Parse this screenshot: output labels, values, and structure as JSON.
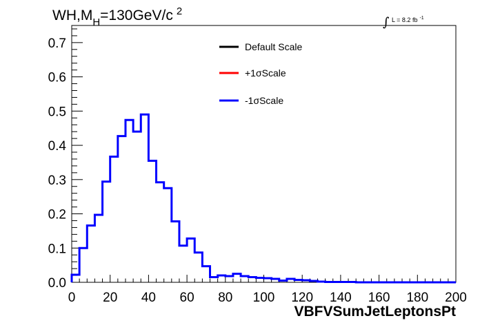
{
  "chart_data": {
    "type": "histogram",
    "title": {
      "main": "WH,M",
      "sub": "H",
      "rest": "=130GeV/c",
      "sup": "2"
    },
    "luminosity": {
      "integral": "∫",
      "text": "L = 8.2 fb",
      "sup": "-1"
    },
    "xlabel": "VBFVSumJetLeptonsPt",
    "ylabel": "",
    "xlim": [
      0,
      200
    ],
    "ylim": [
      0,
      0.75
    ],
    "x_ticks": [
      0,
      20,
      40,
      60,
      80,
      100,
      120,
      140,
      160,
      180,
      200
    ],
    "x_tick_labels": [
      "0",
      "20",
      "40",
      "60",
      "80",
      "100",
      "120",
      "140",
      "160",
      "180",
      "200"
    ],
    "y_ticks": [
      0,
      0.1,
      0.2,
      0.3,
      0.4,
      0.5,
      0.6,
      0.7
    ],
    "y_tick_labels": [
      "0.0",
      "0.1",
      "0.2",
      "0.3",
      "0.4",
      "0.5",
      "0.6",
      "0.7"
    ],
    "bin_width": 4,
    "bin_edges_start": 0,
    "legend": {
      "placement": "top-center",
      "entries": [
        {
          "label": "Default Scale",
          "color": "#000000"
        },
        {
          "label": "+1σScale",
          "color": "#ff0000"
        },
        {
          "label": "-1σScale",
          "color": "#0000ff"
        }
      ]
    },
    "series": [
      {
        "name": "-1σScale",
        "color": "#0000ff",
        "values": [
          0.022,
          0.1,
          0.166,
          0.197,
          0.294,
          0.367,
          0.427,
          0.474,
          0.44,
          0.49,
          0.355,
          0.292,
          0.275,
          0.178,
          0.107,
          0.128,
          0.087,
          0.047,
          0.015,
          0.02,
          0.018,
          0.025,
          0.018,
          0.015,
          0.013,
          0.012,
          0.01,
          0.005,
          0.01,
          0.007,
          0.006,
          0.004,
          0.002,
          0.001,
          0.001,
          0.001,
          0.001,
          0.0,
          0.0,
          0.0,
          0.0,
          0.0,
          0.0,
          0.0,
          0.0,
          0.0,
          0.0,
          0.0,
          0.0,
          0.0
        ]
      }
    ]
  }
}
